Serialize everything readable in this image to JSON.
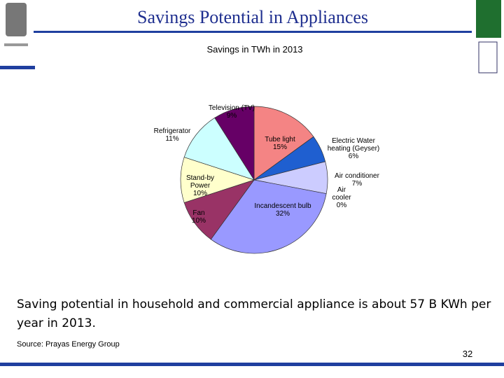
{
  "slide": {
    "title": "Savings Potential in Appliances",
    "body": "Saving potential in household and commercial appliance is about 57 B KWh per year in 2013.",
    "source": "Source: Prayas Energy Group",
    "page_number": "32"
  },
  "chart_data": {
    "type": "pie",
    "title": "Savings in TWh in 2013",
    "categories": [
      "Tube light",
      "Electric Water heating (Geyser)",
      "Air conditioner",
      "Air cooler",
      "Incandescent bulb",
      "Fan",
      "Stand-by Power",
      "Refrigerator",
      "Television (TV)"
    ],
    "values": [
      15,
      6,
      7,
      0,
      32,
      10,
      10,
      11,
      9
    ],
    "value_labels": [
      "15%",
      "6%",
      "7%",
      "0%",
      "32%",
      "10%",
      "10%",
      "11%",
      "9%"
    ],
    "colors": [
      "#f48484",
      "#1f5fd0",
      "#ccccff",
      "#99ccff",
      "#9999ff",
      "#993366",
      "#ffffcc",
      "#ccffff",
      "#660066"
    ]
  }
}
